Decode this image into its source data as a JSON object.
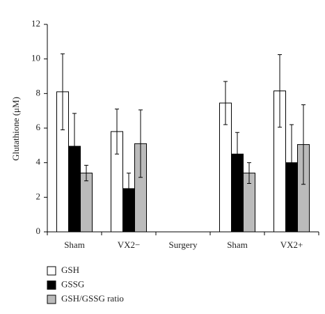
{
  "chart_data": {
    "type": "bar",
    "y_label": "Glutathione (μM)",
    "categories": [
      "Sham",
      "VX2−",
      "Surgery",
      "Sham",
      "VX2+"
    ],
    "series": [
      {
        "name": "GSH",
        "color": "#ffffff",
        "values": [
          8.1,
          5.8,
          null,
          7.45,
          8.15
        ],
        "errors": [
          2.2,
          1.3,
          null,
          1.25,
          2.1
        ]
      },
      {
        "name": "GSSG",
        "color": "#000000",
        "values": [
          4.95,
          2.5,
          null,
          4.5,
          4.0
        ],
        "errors": [
          1.9,
          0.9,
          null,
          1.25,
          2.2
        ]
      },
      {
        "name": "GSH/GSSG ratio",
        "color": "#bbbbbb",
        "values": [
          3.4,
          5.1,
          null,
          3.4,
          5.05
        ],
        "errors": [
          0.45,
          1.95,
          null,
          0.6,
          2.3
        ]
      }
    ],
    "ylim": [
      0,
      12
    ],
    "yticks": [
      0,
      2,
      4,
      6,
      8,
      10,
      12
    ],
    "grid": false
  }
}
